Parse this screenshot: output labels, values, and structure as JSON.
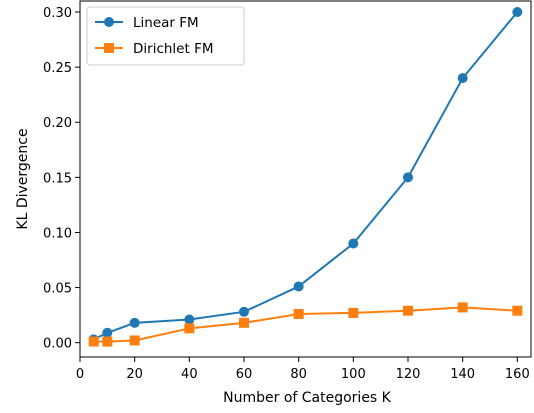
{
  "chart_data": {
    "type": "line",
    "title": "",
    "xlabel": "Number of Categories K",
    "ylabel": "KL Divergence",
    "xlim": [
      0,
      165
    ],
    "ylim": [
      -0.013,
      0.31
    ],
    "xticks": [
      0,
      20,
      40,
      60,
      80,
      100,
      120,
      140,
      160
    ],
    "yticks": [
      0.0,
      0.05,
      0.1,
      0.15,
      0.2,
      0.25,
      0.3
    ],
    "xtick_labels": [
      "0",
      "20",
      "40",
      "60",
      "80",
      "100",
      "120",
      "140",
      "160"
    ],
    "ytick_labels": [
      "0.00",
      "0.05",
      "0.10",
      "0.15",
      "0.20",
      "0.25",
      "0.30"
    ],
    "grid": false,
    "legend_position": "upper-left",
    "x": [
      5,
      10,
      20,
      40,
      60,
      80,
      100,
      120,
      140,
      160
    ],
    "series": [
      {
        "name": "Linear FM",
        "color": "#1f77b4",
        "marker": "circle",
        "values": [
          0.003,
          0.009,
          0.018,
          0.021,
          0.028,
          0.051,
          0.09,
          0.15,
          0.24,
          0.3
        ]
      },
      {
        "name": "Dirichlet FM",
        "color": "#ff7f0e",
        "marker": "square",
        "values": [
          0.001,
          0.001,
          0.002,
          0.013,
          0.018,
          0.026,
          0.027,
          0.029,
          0.032,
          0.029
        ]
      }
    ]
  }
}
